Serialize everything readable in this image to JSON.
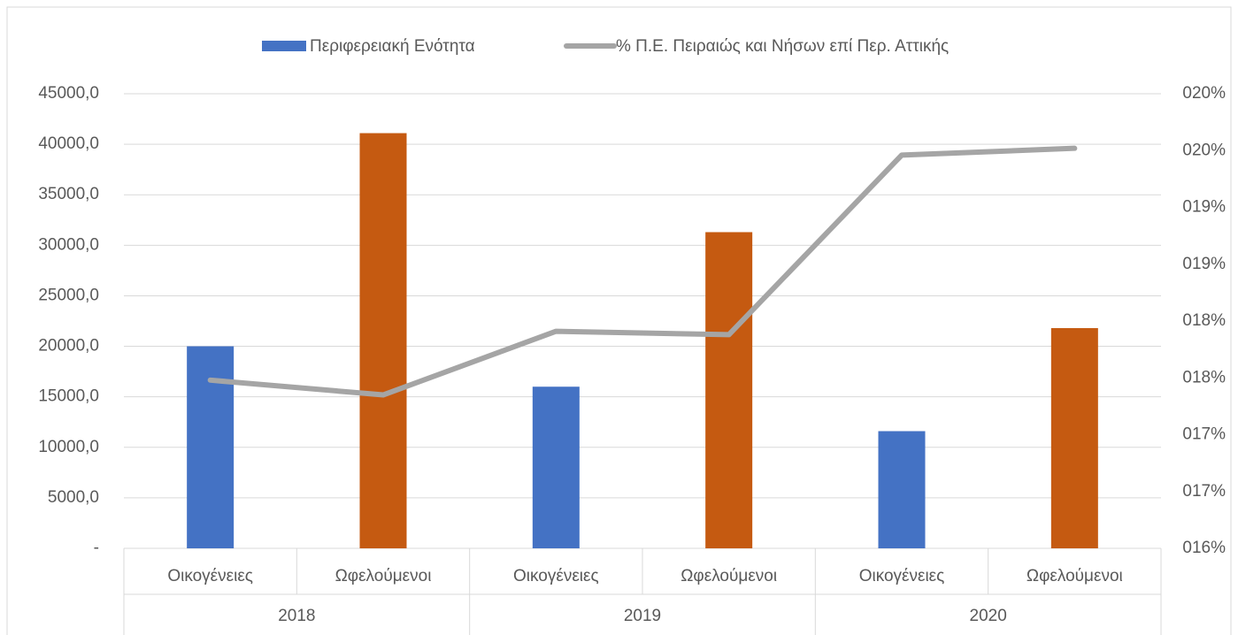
{
  "chart_data": {
    "type": "bar",
    "categories": [
      "Οικογένειες",
      "Ωφελούμενοι",
      "Οικογένειες",
      "Ωφελούμενοι",
      "Οικογένειες",
      "Ωφελούμενοι"
    ],
    "category_groups": [
      "2018",
      "2019",
      "2020"
    ],
    "series": [
      {
        "name": "Περιφερειακή Ενότητα",
        "color": "#4472c4",
        "colors": [
          "#4472c4",
          "#c55a11",
          "#4472c4",
          "#c55a11",
          "#4472c4",
          "#c55a11"
        ],
        "values": [
          20000,
          41100,
          16000,
          31300,
          11600,
          21800
        ]
      },
      {
        "name": "% Π.Ε. Πειραιώς και Νήσων επί Περ. Αττικής",
        "type": "line",
        "axis": "y2",
        "color": "#a5a5a5",
        "values": [
          0.1748,
          0.1735,
          0.1791,
          0.1788,
          0.1946,
          0.1952
        ]
      }
    ],
    "ylim": [
      0,
      45000
    ],
    "yticks": [
      {
        "value": 0,
        "label": "-"
      },
      {
        "value": 5000,
        "label": "5000,0"
      },
      {
        "value": 10000,
        "label": "10000,0"
      },
      {
        "value": 15000,
        "label": "15000,0"
      },
      {
        "value": 20000,
        "label": "20000,0"
      },
      {
        "value": 25000,
        "label": "25000,0"
      },
      {
        "value": 30000,
        "label": "30000,0"
      },
      {
        "value": 35000,
        "label": "35000,0"
      },
      {
        "value": 40000,
        "label": "40000,0"
      },
      {
        "value": 45000,
        "label": "45000,0"
      }
    ],
    "y2lim": [
      0.16,
      0.2
    ],
    "y2ticks": [
      {
        "value": 0.16,
        "label": "016%"
      },
      {
        "value": 0.165,
        "label": "017%"
      },
      {
        "value": 0.17,
        "label": "017%"
      },
      {
        "value": 0.175,
        "label": "018%"
      },
      {
        "value": 0.18,
        "label": "018%"
      },
      {
        "value": 0.185,
        "label": "019%"
      },
      {
        "value": 0.19,
        "label": "019%"
      },
      {
        "value": 0.195,
        "label": "020%"
      },
      {
        "value": 0.2,
        "label": "020%"
      }
    ],
    "grid": true,
    "legend": "top"
  }
}
